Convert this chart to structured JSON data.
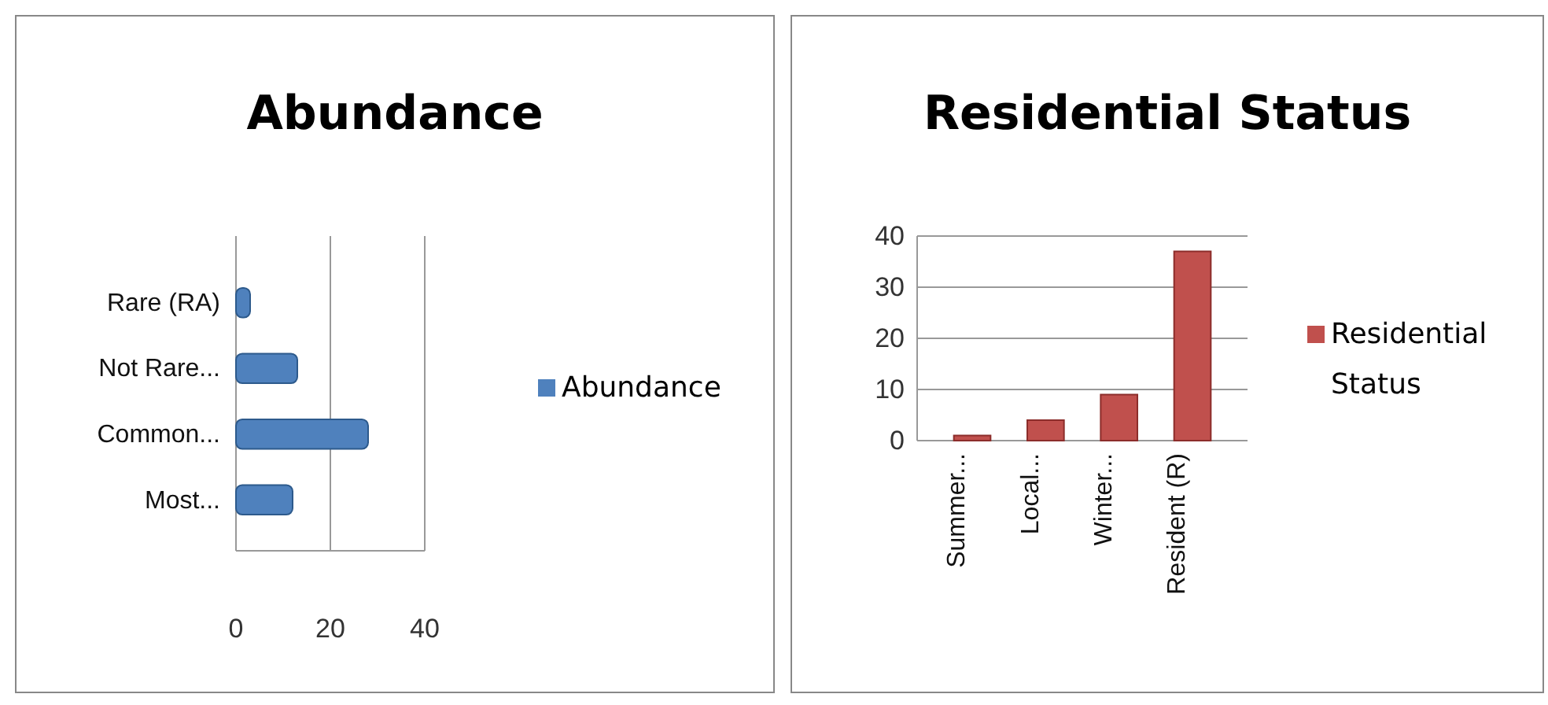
{
  "chart_data": [
    {
      "type": "bar",
      "title": "Abundance",
      "orientation": "horizontal",
      "categories": [
        "Rare (RA)",
        "Not Rare...",
        "Common...",
        "Most..."
      ],
      "series": [
        {
          "name": "Abundance",
          "color": "#4f81bd",
          "values": [
            3,
            13,
            28,
            12
          ]
        }
      ],
      "xlim": [
        0,
        40
      ],
      "xticks": [
        0,
        20,
        40
      ],
      "grid": "x",
      "legend": "right"
    },
    {
      "type": "bar",
      "title": "Residential Status",
      "categories": [
        "Summer...",
        "Local...",
        "Winter...",
        "Resident (R)"
      ],
      "series": [
        {
          "name": "Residential Status",
          "color": "#c0504d",
          "values": [
            1,
            4,
            9,
            37
          ]
        }
      ],
      "ylim": [
        0,
        40
      ],
      "yticks": [
        0,
        10,
        20,
        30,
        40
      ],
      "grid": "y",
      "legend": "right"
    }
  ]
}
